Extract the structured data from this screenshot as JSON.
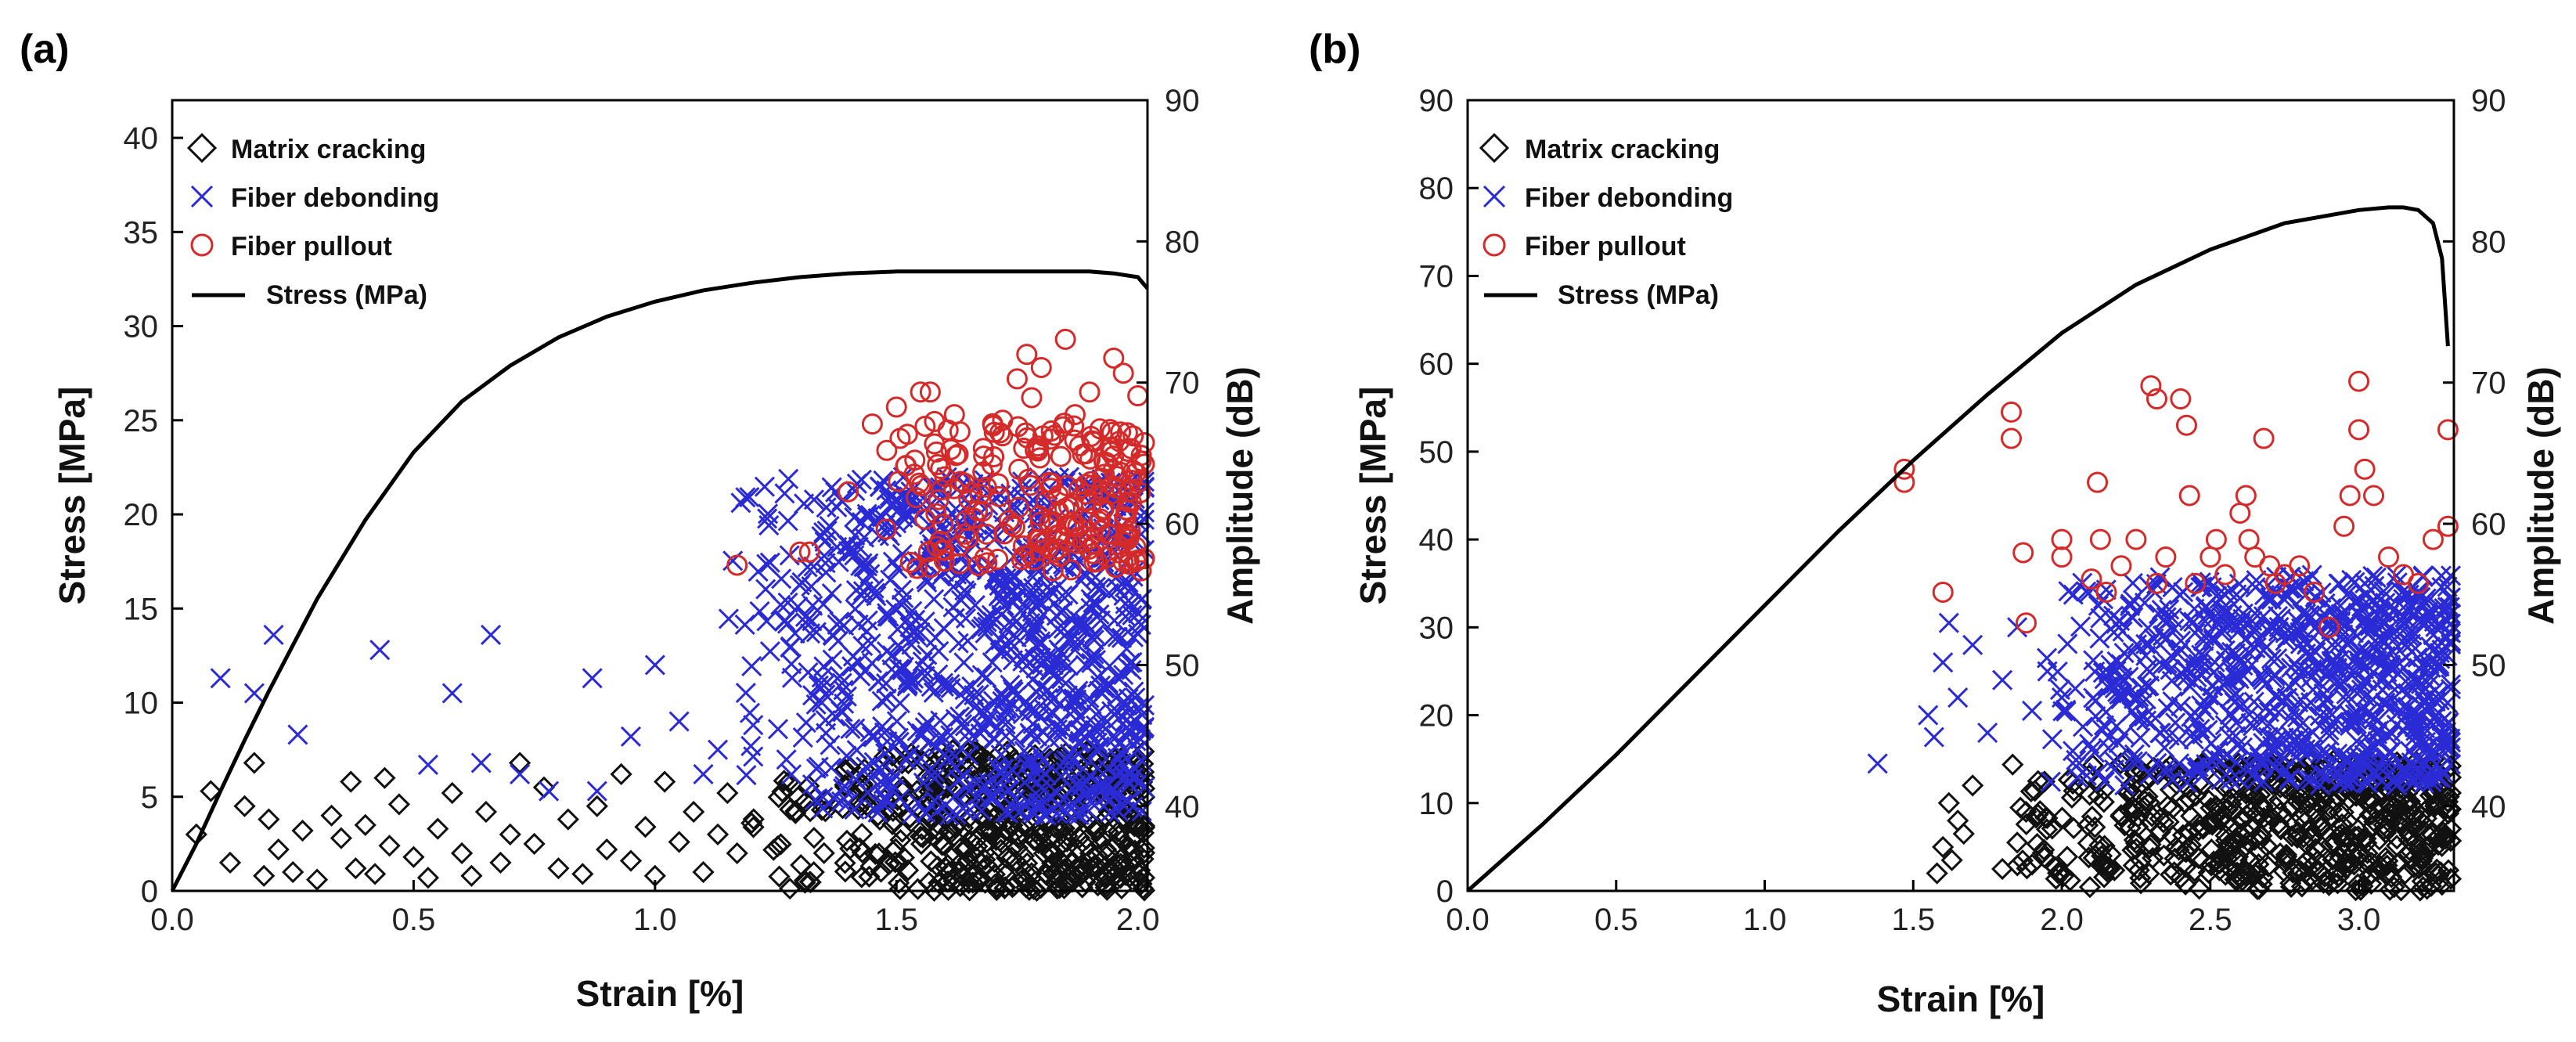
{
  "colors": {
    "matrix_cracking": "#111111",
    "fiber_debonding": "#2b2bd6",
    "fiber_pullout": "#d42a2a",
    "stress_line": "#000000"
  },
  "chart_data": [
    {
      "panel_label": "(a)",
      "type": "scatter",
      "xlabel": "Strain [%]",
      "ylabel": "Stress [MPa]",
      "y2label": "Amplitude (dB)",
      "xlim": [
        0,
        2.02
      ],
      "ylim": [
        0,
        42
      ],
      "y2lim": [
        34,
        90
      ],
      "xticks": [
        0,
        0.5,
        1.0,
        1.5,
        2.0
      ],
      "xtick_labels": [
        "0.0",
        "0.5",
        "1.0",
        "1.5",
        "2.0"
      ],
      "yticks": [
        0,
        5,
        10,
        15,
        20,
        25,
        30,
        35,
        40
      ],
      "ytick_labels": [
        "0",
        "5",
        "10",
        "15",
        "20",
        "25",
        "30",
        "35",
        "40"
      ],
      "y2ticks": [
        40,
        50,
        60,
        70,
        80,
        90
      ],
      "y2tick_labels": [
        "40",
        "50",
        "60",
        "70",
        "80",
        "90"
      ],
      "legend": [
        "Matrix cracking",
        "Fiber debonding",
        "Fiber pullout",
        "Stress (MPa)"
      ],
      "legend_position": "top-left",
      "stress_curve": {
        "x": [
          0,
          0.05,
          0.1,
          0.15,
          0.2,
          0.3,
          0.4,
          0.5,
          0.6,
          0.7,
          0.8,
          0.9,
          1.0,
          1.1,
          1.2,
          1.3,
          1.4,
          1.5,
          1.6,
          1.7,
          1.8,
          1.9,
          1.95,
          2.0,
          2.02
        ],
        "y": [
          0,
          2.5,
          5.3,
          8.0,
          10.6,
          15.5,
          19.7,
          23.3,
          26.0,
          27.9,
          29.4,
          30.5,
          31.3,
          31.9,
          32.3,
          32.6,
          32.8,
          32.9,
          32.9,
          32.9,
          32.9,
          32.9,
          32.8,
          32.6,
          32.0
        ]
      },
      "series": [
        {
          "name": "Matrix cracking",
          "amp_range": [
            34,
            42
          ],
          "sparse": {
            "x": [
              0.05,
              0.08,
              0.12,
              0.15,
              0.17,
              0.19,
              0.2,
              0.22,
              0.25,
              0.27,
              0.3,
              0.33,
              0.35,
              0.37,
              0.38,
              0.4,
              0.42,
              0.44,
              0.45,
              0.47,
              0.5,
              0.53,
              0.55,
              0.58,
              0.6,
              0.62,
              0.65,
              0.68,
              0.7,
              0.72,
              0.75,
              0.77,
              0.8,
              0.82,
              0.85,
              0.88,
              0.9,
              0.93,
              0.95,
              0.98,
              1.0,
              1.02,
              1.05,
              1.08,
              1.1,
              1.13,
              1.15,
              1.17,
              1.2
            ],
            "y": [
              3.0,
              5.3,
              1.5,
              4.5,
              6.8,
              0.8,
              3.8,
              2.2,
              1.0,
              3.2,
              0.6,
              4.0,
              2.8,
              5.8,
              1.2,
              3.5,
              0.9,
              6.0,
              2.4,
              4.6,
              1.8,
              0.7,
              3.3,
              5.2,
              2.0,
              0.8,
              4.2,
              1.5,
              3.0,
              6.8,
              2.5,
              5.5,
              1.2,
              3.8,
              0.9,
              4.5,
              2.2,
              6.2,
              1.6,
              3.4,
              0.8,
              5.8,
              2.6,
              4.2,
              1.0,
              3.0,
              5.2,
              2.0,
              3.6
            ]
          },
          "dense_region": {
            "x_range": [
              1.2,
              2.02
            ],
            "y_range": [
              0,
              7.5
            ],
            "count": 520
          }
        },
        {
          "name": "Fiber debonding",
          "amp_range": [
            40,
            60
          ],
          "sparse": {
            "x": [
              0.1,
              0.17,
              0.21,
              0.26,
              0.43,
              0.53,
              0.58,
              0.64,
              0.66,
              0.72,
              0.78,
              0.87,
              0.88,
              0.95,
              1.0,
              1.05,
              1.1,
              1.13
            ],
            "y": [
              11.3,
              10.5,
              13.6,
              8.3,
              12.8,
              6.7,
              10.5,
              6.8,
              13.6,
              6.2,
              5.3,
              11.3,
              5.3,
              8.2,
              12.0,
              9.0,
              6.2,
              7.5
            ]
          },
          "dense_region": {
            "x_range": [
              1.15,
              2.02
            ],
            "y_range": [
              4,
              22
            ],
            "count": 900
          }
        },
        {
          "name": "Fiber pullout",
          "amp_range": [
            54,
            74
          ],
          "sparse": {
            "x": [
              1.17,
              1.3,
              1.32,
              1.4,
              1.45,
              1.48,
              1.5,
              1.52,
              1.55,
              1.57,
              1.6,
              1.62,
              1.65,
              1.68,
              1.7,
              1.72,
              1.75,
              1.77,
              1.78,
              1.8,
              1.82,
              1.85,
              1.87,
              1.9,
              1.93,
              1.95,
              1.97,
              2.0
            ],
            "y": [
              17.3,
              18.0,
              18.0,
              21.2,
              24.8,
              23.4,
              25.7,
              22.6,
              26.5,
              26.5,
              22.0,
              25.3,
              20.8,
              23.5,
              24.7,
              25.0,
              27.2,
              28.5,
              26.2,
              27.8,
              24.0,
              29.3,
              25.3,
              26.5,
              22.8,
              28.3,
              27.5,
              26.3
            ]
          },
          "dense_region": {
            "x_range": [
              1.45,
              2.02
            ],
            "y_range": [
              17,
              25
            ],
            "count": 220
          }
        }
      ]
    },
    {
      "panel_label": "(b)",
      "type": "scatter",
      "xlabel": "Strain [%]",
      "ylabel": "Stress [MPa]",
      "y2label": "Amplitude (dB)",
      "xlim": [
        0,
        3.32
      ],
      "ylim": [
        0,
        90
      ],
      "y2lim": [
        34,
        90
      ],
      "xticks": [
        0,
        0.5,
        1.0,
        1.5,
        2.0,
        2.5,
        3.0
      ],
      "xtick_labels": [
        "0.0",
        "0.5",
        "1.0",
        "1.5",
        "2.0",
        "2.5",
        "3.0"
      ],
      "yticks": [
        0,
        10,
        20,
        30,
        40,
        50,
        60,
        70,
        80,
        90
      ],
      "ytick_labels": [
        "0",
        "10",
        "20",
        "30",
        "40",
        "50",
        "60",
        "70",
        "80",
        "90"
      ],
      "y2ticks": [
        40,
        50,
        60,
        70,
        80,
        90
      ],
      "y2tick_labels": [
        "40",
        "50",
        "60",
        "70",
        "80",
        "90"
      ],
      "legend": [
        "Matrix cracking",
        "Fiber debonding",
        "Fiber pullout",
        "Stress (MPa)"
      ],
      "legend_position": "top-left",
      "stress_curve": {
        "x": [
          0,
          0.25,
          0.5,
          0.75,
          1.0,
          1.25,
          1.5,
          1.75,
          2.0,
          2.25,
          2.5,
          2.75,
          3.0,
          3.1,
          3.15,
          3.2,
          3.25,
          3.28,
          3.3
        ],
        "y": [
          0,
          7.5,
          15.5,
          24.0,
          32.5,
          41.0,
          49.0,
          56.5,
          63.5,
          69.0,
          73.0,
          76.0,
          77.5,
          77.8,
          77.8,
          77.5,
          76.0,
          72.0,
          62.0
        ]
      },
      "series": [
        {
          "name": "Matrix cracking",
          "amp_range": [
            34,
            44
          ],
          "sparse": {
            "x": [
              1.58,
              1.6,
              1.62,
              1.63,
              1.65,
              1.67,
              1.7,
              1.8,
              1.85,
              1.88,
              1.9,
              1.92,
              1.95
            ],
            "y": [
              2.0,
              5.0,
              10.0,
              3.5,
              8.0,
              6.5,
              12.0,
              2.5,
              5.5,
              9.0,
              3.0,
              12.5,
              7.0
            ]
          },
          "dense_region": {
            "x_range": [
              1.8,
              3.32
            ],
            "y_range": [
              0,
              15
            ],
            "count": 600
          }
        },
        {
          "name": "Fiber debonding",
          "amp_range": [
            42,
            56
          ],
          "sparse": {
            "x": [
              1.38,
              1.55,
              1.57,
              1.6,
              1.62,
              1.65,
              1.7,
              1.75,
              1.8,
              1.85,
              1.9,
              1.95,
              2.0
            ],
            "y": [
              14.5,
              20.0,
              17.5,
              26.0,
              30.5,
              22.0,
              28.0,
              18.0,
              24.0,
              30.0,
              20.5,
              26.5,
              22.0
            ]
          },
          "dense_region": {
            "x_range": [
              1.9,
              3.32
            ],
            "y_range": [
              12,
              36
            ],
            "count": 800
          }
        },
        {
          "name": "Fiber pullout",
          "amp_range": [
            52,
            70
          ],
          "sparse": {
            "x": [
              1.47,
              1.47,
              1.6,
              1.83,
              1.83,
              1.87,
              1.88,
              2.0,
              2.0,
              2.1,
              2.12,
              2.13,
              2.15,
              2.2,
              2.25,
              2.3,
              2.32,
              2.32,
              2.35,
              2.4,
              2.42,
              2.43,
              2.45,
              2.5,
              2.52,
              2.55,
              2.6,
              2.62,
              2.63,
              2.65,
              2.68,
              2.7,
              2.72,
              2.75,
              2.8,
              2.85,
              2.9,
              2.95,
              2.97,
              3.0,
              3.0,
              3.02,
              3.05,
              3.1,
              3.15,
              3.2,
              3.25,
              3.3,
              3.3
            ],
            "y": [
              48.0,
              46.5,
              34.0,
              54.5,
              51.5,
              38.5,
              30.5,
              40.0,
              38.0,
              35.5,
              46.5,
              40.0,
              34.0,
              37.0,
              40.0,
              57.5,
              56.0,
              35.0,
              38.0,
              56.0,
              53.0,
              45.0,
              35.0,
              38.0,
              40.0,
              36.0,
              43.0,
              45.0,
              40.0,
              38.0,
              51.5,
              37.0,
              35.0,
              36.0,
              37.0,
              34.0,
              30.0,
              41.5,
              45.0,
              58.0,
              52.5,
              48.0,
              45.0,
              38.0,
              36.0,
              35.0,
              40.0,
              52.5,
              41.5
            ]
          },
          "dense_region": null
        }
      ]
    }
  ]
}
